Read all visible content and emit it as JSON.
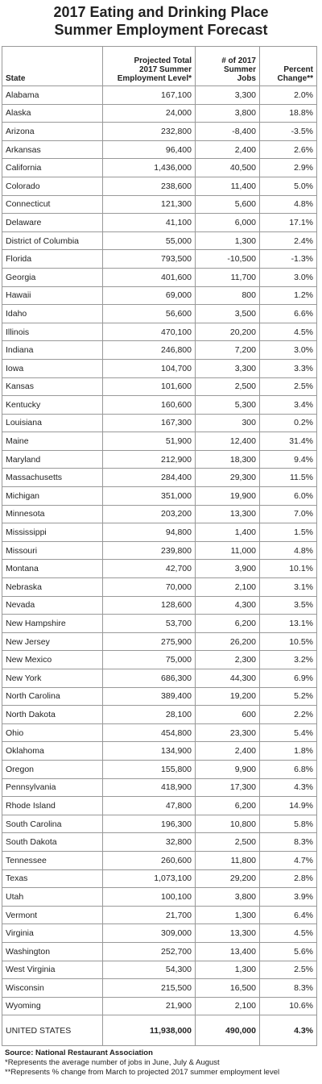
{
  "header": {
    "title": [
      "2017 Eating and Drinking Place",
      "Summer Employment Forecast"
    ]
  },
  "table": {
    "columns": [
      [
        "State"
      ],
      [
        "Projected Total",
        "2017 Summer",
        "Employment Level*"
      ],
      [
        "# of 2017",
        "Summer",
        "Jobs"
      ],
      [
        "Percent",
        "Change**"
      ]
    ],
    "rows": [
      [
        "Alabama",
        "167,100",
        "3,300",
        "2.0%"
      ],
      [
        "Alaska",
        "24,000",
        "3,800",
        "18.8%"
      ],
      [
        "Arizona",
        "232,800",
        "-8,400",
        "-3.5%"
      ],
      [
        "Arkansas",
        "96,400",
        "2,400",
        "2.6%"
      ],
      [
        "California",
        "1,436,000",
        "40,500",
        "2.9%"
      ],
      [
        "Colorado",
        "238,600",
        "11,400",
        "5.0%"
      ],
      [
        "Connecticut",
        "121,300",
        "5,600",
        "4.8%"
      ],
      [
        "Delaware",
        "41,100",
        "6,000",
        "17.1%"
      ],
      [
        "District of Columbia",
        "55,000",
        "1,300",
        "2.4%"
      ],
      [
        "Florida",
        "793,500",
        "-10,500",
        "-1.3%"
      ],
      [
        "Georgia",
        "401,600",
        "11,700",
        "3.0%"
      ],
      [
        "Hawaii",
        "69,000",
        "800",
        "1.2%"
      ],
      [
        "Idaho",
        "56,600",
        "3,500",
        "6.6%"
      ],
      [
        "Illinois",
        "470,100",
        "20,200",
        "4.5%"
      ],
      [
        "Indiana",
        "246,800",
        "7,200",
        "3.0%"
      ],
      [
        "Iowa",
        "104,700",
        "3,300",
        "3.3%"
      ],
      [
        "Kansas",
        "101,600",
        "2,500",
        "2.5%"
      ],
      [
        "Kentucky",
        "160,600",
        "5,300",
        "3.4%"
      ],
      [
        "Louisiana",
        "167,300",
        "300",
        "0.2%"
      ],
      [
        "Maine",
        "51,900",
        "12,400",
        "31.4%"
      ],
      [
        "Maryland",
        "212,900",
        "18,300",
        "9.4%"
      ],
      [
        "Massachusetts",
        "284,400",
        "29,300",
        "11.5%"
      ],
      [
        "Michigan",
        "351,000",
        "19,900",
        "6.0%"
      ],
      [
        "Minnesota",
        "203,200",
        "13,300",
        "7.0%"
      ],
      [
        "Mississippi",
        "94,800",
        "1,400",
        "1.5%"
      ],
      [
        "Missouri",
        "239,800",
        "11,000",
        "4.8%"
      ],
      [
        "Montana",
        "42,700",
        "3,900",
        "10.1%"
      ],
      [
        "Nebraska",
        "70,000",
        "2,100",
        "3.1%"
      ],
      [
        "Nevada",
        "128,600",
        "4,300",
        "3.5%"
      ],
      [
        "New Hampshire",
        "53,700",
        "6,200",
        "13.1%"
      ],
      [
        "New Jersey",
        "275,900",
        "26,200",
        "10.5%"
      ],
      [
        "New Mexico",
        "75,000",
        "2,300",
        "3.2%"
      ],
      [
        "New York",
        "686,300",
        "44,300",
        "6.9%"
      ],
      [
        "North Carolina",
        "389,400",
        "19,200",
        "5.2%"
      ],
      [
        "North Dakota",
        "28,100",
        "600",
        "2.2%"
      ],
      [
        "Ohio",
        "454,800",
        "23,300",
        "5.4%"
      ],
      [
        "Oklahoma",
        "134,900",
        "2,400",
        "1.8%"
      ],
      [
        "Oregon",
        "155,800",
        "9,900",
        "6.8%"
      ],
      [
        "Pennsylvania",
        "418,900",
        "17,300",
        "4.3%"
      ],
      [
        "Rhode Island",
        "47,800",
        "6,200",
        "14.9%"
      ],
      [
        "South Carolina",
        "196,300",
        "10,800",
        "5.8%"
      ],
      [
        "South Dakota",
        "32,800",
        "2,500",
        "8.3%"
      ],
      [
        "Tennessee",
        "260,600",
        "11,800",
        "4.7%"
      ],
      [
        "Texas",
        "1,073,100",
        "29,200",
        "2.8%"
      ],
      [
        "Utah",
        "100,100",
        "3,800",
        "3.9%"
      ],
      [
        "Vermont",
        "21,700",
        "1,300",
        "6.4%"
      ],
      [
        "Virginia",
        "309,000",
        "13,300",
        "4.5%"
      ],
      [
        "Washington",
        "252,700",
        "13,400",
        "5.6%"
      ],
      [
        "West Virginia",
        "54,300",
        "1,300",
        "2.5%"
      ],
      [
        "Wisconsin",
        "215,500",
        "16,500",
        "8.3%"
      ],
      [
        "Wyoming",
        "21,900",
        "2,100",
        "10.6%"
      ]
    ],
    "total": [
      "UNITED STATES",
      "11,938,000",
      "490,000",
      "4.3%"
    ]
  },
  "footer": {
    "source": "Source: National Restaurant Association",
    "notes": [
      "*Represents the average number of jobs in June, July & August",
      "**Represents % change from March to projected 2017 summer employment level"
    ]
  }
}
